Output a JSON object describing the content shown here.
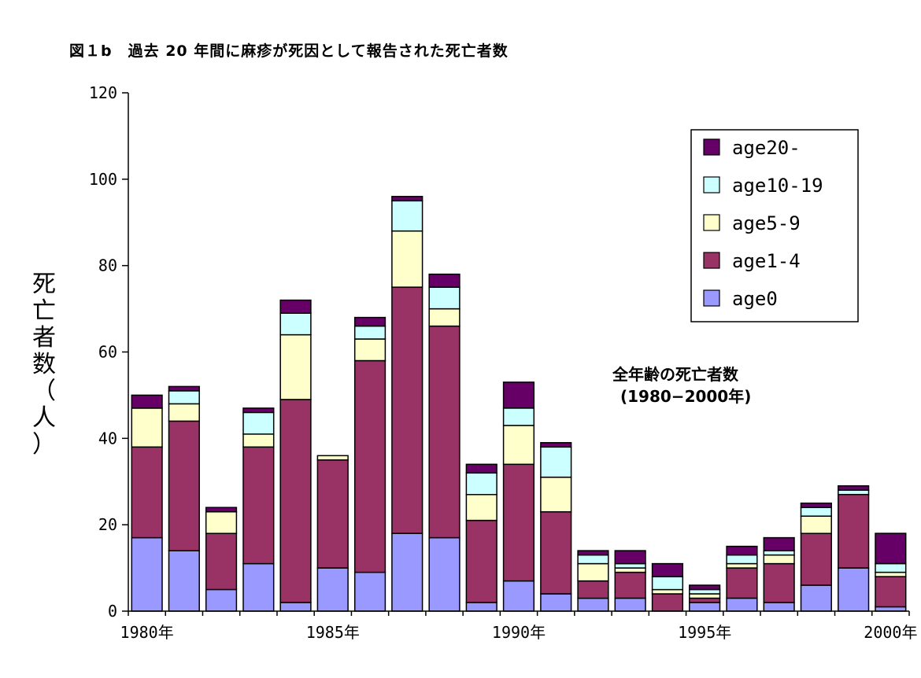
{
  "chart_data": {
    "type": "bar",
    "stacked": true,
    "title": "図１b　過去 20 年間に麻疹が死因として報告された死亡者数",
    "ylabel": "死亡者数（人）",
    "xlabel": "",
    "annotation": [
      "全年齢の死亡者数",
      "(1980−2000年)"
    ],
    "ylim": [
      0,
      120
    ],
    "yticks": [
      "0",
      "20",
      "40",
      "60",
      "80",
      "100",
      "120"
    ],
    "xtick_labels": [
      "1980年",
      "1985年",
      "1990年",
      "1995年",
      "2000年"
    ],
    "categories": [
      "1980",
      "1981",
      "1982",
      "1983",
      "1984",
      "1985",
      "1986",
      "1987",
      "1988",
      "1989",
      "1990",
      "1991",
      "1992",
      "1993",
      "1994",
      "1995",
      "1996",
      "1997",
      "1998",
      "1999",
      "2000"
    ],
    "series": [
      {
        "name": "age0",
        "color": "#9999ff",
        "values": [
          17,
          14,
          5,
          11,
          2,
          10,
          9,
          18,
          17,
          2,
          7,
          4,
          3,
          3,
          0,
          2,
          3,
          2,
          6,
          10,
          1
        ]
      },
      {
        "name": "age1-4",
        "color": "#993366",
        "values": [
          21,
          30,
          13,
          27,
          47,
          25,
          49,
          57,
          49,
          19,
          27,
          19,
          4,
          6,
          4,
          1,
          7,
          9,
          12,
          17,
          7
        ]
      },
      {
        "name": "age5-9",
        "color": "#ffffcc",
        "values": [
          9,
          4,
          5,
          3,
          15,
          1,
          5,
          13,
          4,
          6,
          9,
          8,
          4,
          1,
          1,
          1,
          1,
          2,
          4,
          0,
          1
        ]
      },
      {
        "name": "age10-19",
        "color": "#ccffff",
        "values": [
          0,
          3,
          0,
          5,
          5,
          0,
          3,
          7,
          5,
          5,
          4,
          7,
          2,
          1,
          3,
          1,
          2,
          1,
          2,
          1,
          2
        ]
      },
      {
        "name": "age20-",
        "color": "#660066",
        "values": [
          3,
          1,
          1,
          1,
          3,
          0,
          2,
          1,
          3,
          2,
          6,
          1,
          1,
          3,
          3,
          1,
          2,
          3,
          1,
          1,
          7
        ]
      }
    ],
    "legend_position": "top-right",
    "grid": false
  }
}
